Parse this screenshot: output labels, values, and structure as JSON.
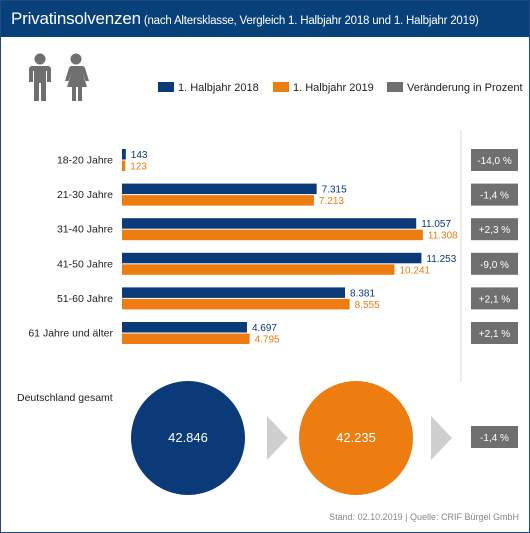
{
  "header": {
    "title_main": "Privatinsolvenzen",
    "title_sub": " (nach Altersklasse, Vergleich 1. Halbjahr 2018 und 1. Halbjahr 2019)"
  },
  "colors": {
    "header_bg": "#08417a",
    "series_2018": "#0a3a78",
    "series_2019": "#ee7d11",
    "change": "#6f6f6f",
    "arrow": "#cfcfcf",
    "people_icon": "#6f6f6f"
  },
  "icons": [
    "male-person-icon",
    "female-person-icon",
    "chevron-right-icon"
  ],
  "legend": {
    "s2018": "1. Halbjahr 2018",
    "s2019": "1. Halbjahr 2019",
    "change": "Veränderung in Prozent"
  },
  "chart_data": {
    "type": "bar",
    "orientation": "horizontal",
    "categories": [
      "18-20 Jahre",
      "21-30 Jahre",
      "31-40 Jahre",
      "41-50 Jahre",
      "51-60 Jahre",
      "61 Jahre und älter"
    ],
    "series": [
      {
        "name": "1. Halbjahr 2018",
        "values": [
          143,
          7315,
          11057,
          11253,
          8381,
          4697
        ],
        "labels": [
          "143",
          "7.315",
          "11.057",
          "11.253",
          "8.381",
          "4.697"
        ]
      },
      {
        "name": "1. Halbjahr 2019",
        "values": [
          123,
          7213,
          11308,
          10241,
          8555,
          4795
        ],
        "labels": [
          "123",
          "7.213",
          "11.308",
          "10.241",
          "8.555",
          "4.795"
        ]
      }
    ],
    "change_labels": [
      "-14,0 %",
      "-1,4 %",
      "+2,3 %",
      "-9,0 %",
      "+2,1 %",
      "+2,1 %"
    ],
    "xlim": [
      0,
      11500
    ],
    "grid": false,
    "legend_position": "top-right"
  },
  "total": {
    "label": "Deutschland gesamt",
    "value_2018": "42.846",
    "value_2019": "42.235",
    "change": "-1,4 %"
  },
  "footer": "Stand: 02.10.2019 | Quelle: CRIF Bürgel GmbH"
}
